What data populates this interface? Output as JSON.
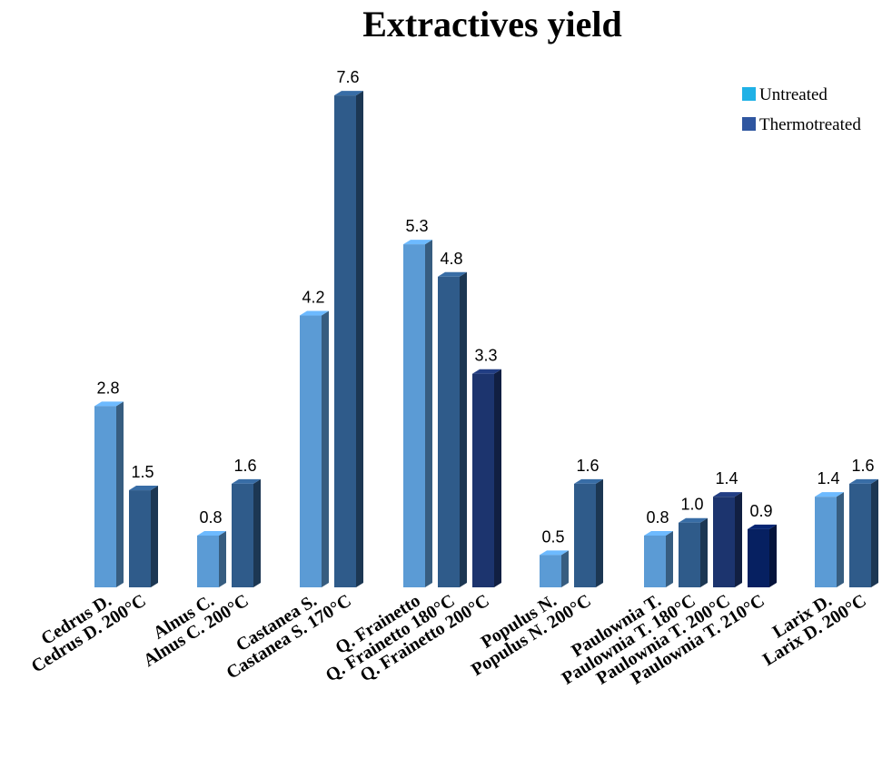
{
  "chart_data": {
    "type": "bar",
    "title": "Extractives yield",
    "xlabel": "",
    "ylabel": "",
    "ylim": [
      0,
      8
    ],
    "grid": false,
    "legend_position": "top-right",
    "legend": [
      {
        "label": "Untreated",
        "color": "#1fb1e6"
      },
      {
        "label": "Thermotreated",
        "color": "#2f56a0"
      }
    ],
    "groups": [
      {
        "bars": [
          {
            "label": "Cedrus D.",
            "value": 2.8,
            "value_label": "2.8",
            "color": "#5b9bd5"
          },
          {
            "label": "Cedrus D. 200°C",
            "value": 1.5,
            "value_label": "1.5",
            "color": "#2f5b8a"
          }
        ]
      },
      {
        "bars": [
          {
            "label": "Alnus C.",
            "value": 0.8,
            "value_label": "0.8",
            "color": "#5b9bd5"
          },
          {
            "label": "Alnus C. 200°C",
            "value": 1.6,
            "value_label": "1.6",
            "color": "#2f5b8a"
          }
        ]
      },
      {
        "bars": [
          {
            "label": "Castanea S.",
            "value": 4.2,
            "value_label": "4.2",
            "color": "#5b9bd5"
          },
          {
            "label": "Castanea S. 170°C",
            "value": 7.6,
            "value_label": "7.6",
            "color": "#2f5b8a"
          }
        ]
      },
      {
        "bars": [
          {
            "label": "Q. Frainetto",
            "value": 5.3,
            "value_label": "5.3",
            "color": "#5b9bd5"
          },
          {
            "label": "Q. Frainetto 180°C",
            "value": 4.8,
            "value_label": "4.8",
            "color": "#2f5b8a"
          },
          {
            "label": "Q. Frainetto 200°C",
            "value": 3.3,
            "value_label": "3.3",
            "color": "#1c346e"
          }
        ]
      },
      {
        "bars": [
          {
            "label": "Populus N.",
            "value": 0.5,
            "value_label": "0.5",
            "color": "#5b9bd5"
          },
          {
            "label": "Populus N. 200°C",
            "value": 1.6,
            "value_label": "1.6",
            "color": "#2f5b8a"
          }
        ]
      },
      {
        "bars": [
          {
            "label": "Paulownia T.",
            "value": 0.8,
            "value_label": "0.8",
            "color": "#5b9bd5"
          },
          {
            "label": "Paulownia T. 180°C",
            "value": 1.0,
            "value_label": "1.0",
            "color": "#2f5b8a"
          },
          {
            "label": "Paulownia T. 200°C",
            "value": 1.4,
            "value_label": "1.4",
            "color": "#1c346e"
          },
          {
            "label": "Paulownia T. 210°C",
            "value": 0.9,
            "value_label": "0.9",
            "color": "#062061"
          }
        ]
      },
      {
        "bars": [
          {
            "label": "Larix D.",
            "value": 1.4,
            "value_label": "1.4",
            "color": "#5b9bd5"
          },
          {
            "label": "Larix D. 200°C",
            "value": 1.6,
            "value_label": "1.6",
            "color": "#2f5b8a"
          }
        ]
      }
    ]
  }
}
